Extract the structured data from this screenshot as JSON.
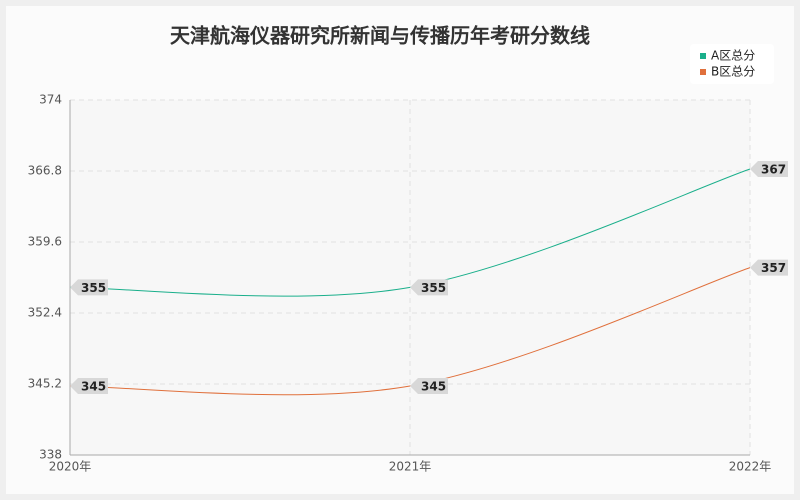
{
  "chart_data": {
    "type": "line",
    "title": "天津航海仪器研究所新闻与传播历年考研分数线",
    "categories": [
      "2020年",
      "2021年",
      "2022年"
    ],
    "series": [
      {
        "name": "A区总分",
        "color": "#1aaf8b",
        "values": [
          355,
          355,
          367
        ]
      },
      {
        "name": "B区总分",
        "color": "#e0703c",
        "values": [
          345,
          345,
          357
        ]
      }
    ],
    "ylim": [
      338,
      374
    ],
    "yticks": [
      338,
      345.2,
      352.4,
      359.6,
      366.8,
      374
    ],
    "grid": true,
    "legend": "top-right"
  }
}
